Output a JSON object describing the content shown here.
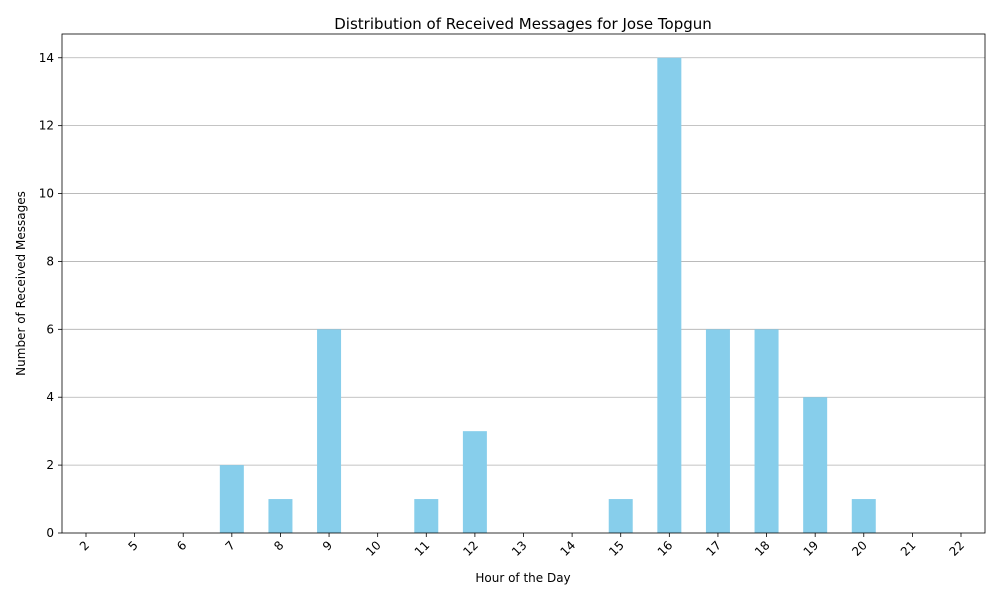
{
  "chart_data": {
    "type": "bar",
    "title": "Distribution of Received Messages for Jose Topgun",
    "xlabel": "Hour of the Day",
    "ylabel": "Number of Received Messages",
    "categories": [
      "2",
      "5",
      "6",
      "7",
      "8",
      "9",
      "10",
      "11",
      "12",
      "13",
      "14",
      "15",
      "16",
      "17",
      "18",
      "19",
      "20",
      "21",
      "22"
    ],
    "values": [
      0,
      0,
      0,
      2,
      1,
      6,
      0,
      1,
      3,
      0,
      0,
      1,
      14,
      6,
      6,
      4,
      1,
      0,
      0
    ],
    "ylim": [
      0,
      14.7
    ],
    "yticks": [
      0,
      2,
      4,
      6,
      8,
      10,
      12,
      14
    ],
    "grid": "y-axis only",
    "bar_color": "#87CEEB",
    "xtick_rotation_deg": 45
  }
}
